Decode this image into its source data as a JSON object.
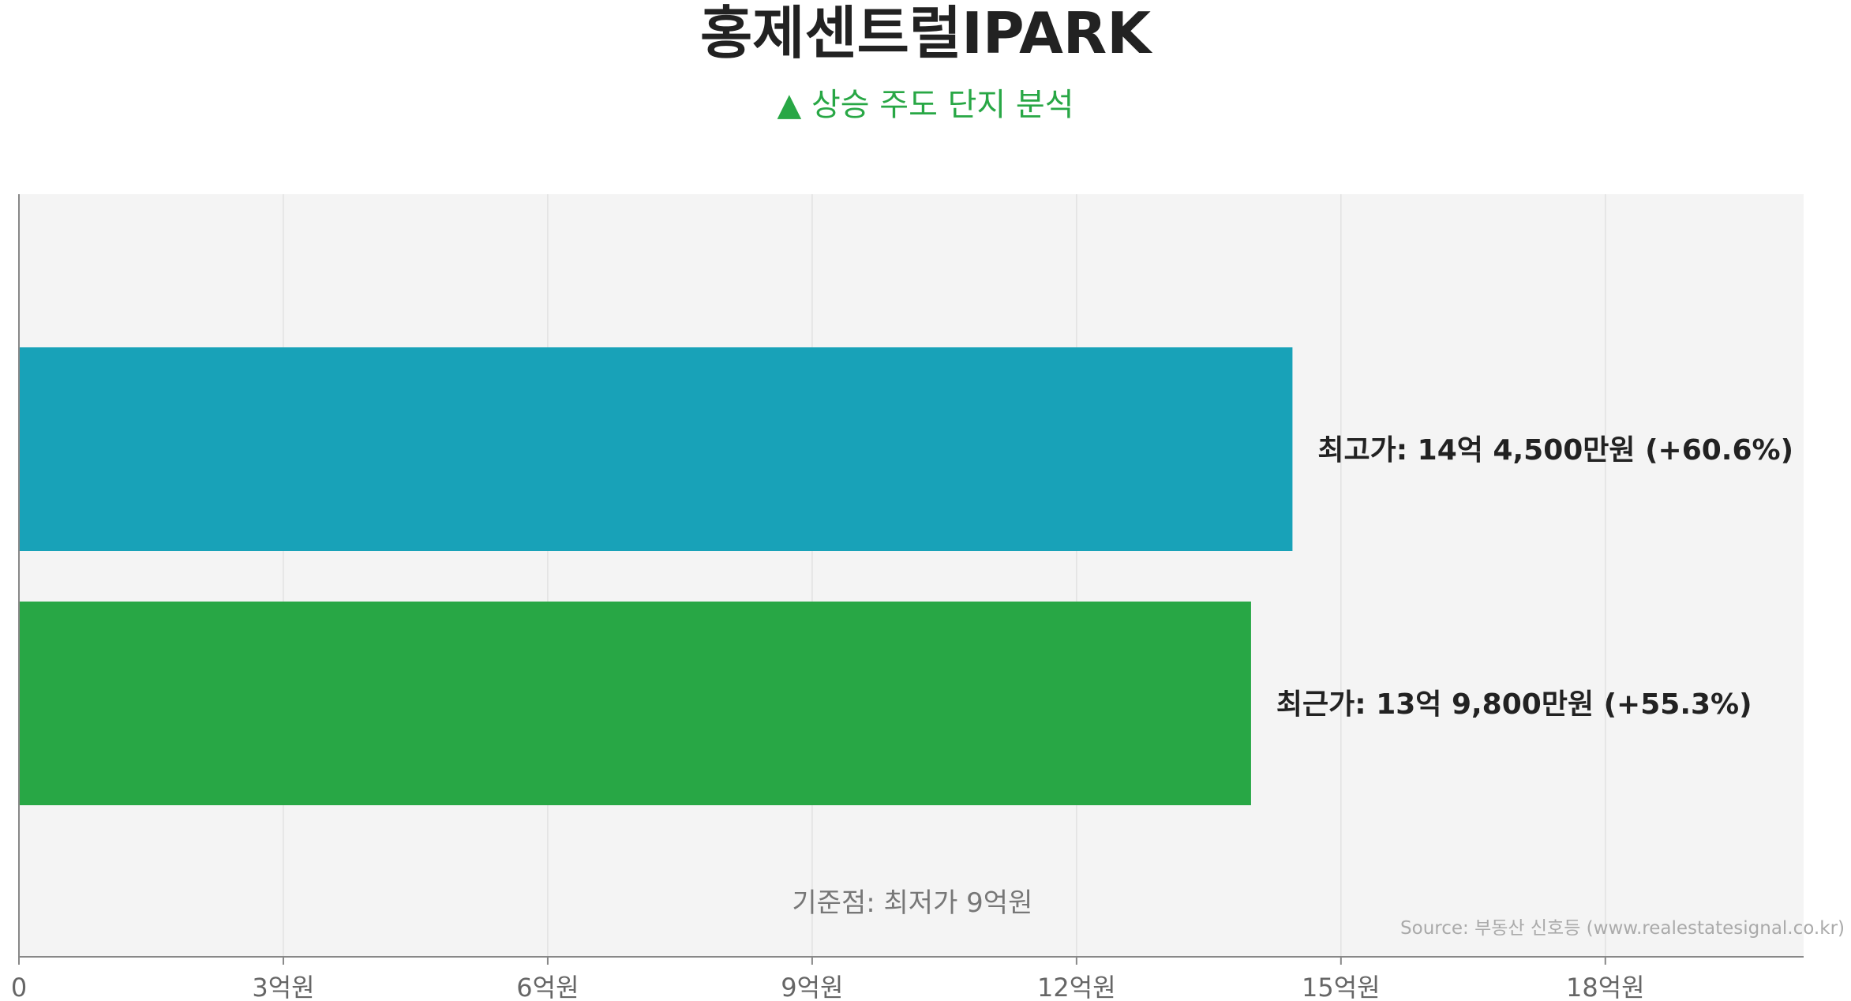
{
  "title": "홍제센트럴IPARK",
  "subtitle": "▲ 상승 주도 단지 분석",
  "source": "Source: 부동산 신호등 (www.realestatesignal.co.kr)",
  "colors": {
    "background": "#f4f4f4",
    "highest_bar": "#18a2b8",
    "recent_bar": "#28a745",
    "subtitle": "#28a745",
    "grid": "#e2e2e2",
    "axis": "#888888",
    "label_text": "#222222",
    "baseline_text": "#777777"
  },
  "chart_data": {
    "type": "bar",
    "orientation": "horizontal",
    "x_ticks": [
      {
        "value": 0,
        "label": "0"
      },
      {
        "value": 3,
        "label": "3억원"
      },
      {
        "value": 6,
        "label": "6억원"
      },
      {
        "value": 9,
        "label": "9억원"
      },
      {
        "value": 12,
        "label": "12억원"
      },
      {
        "value": 15,
        "label": "15억원"
      },
      {
        "value": 18,
        "label": "18억원"
      }
    ],
    "xlim": [
      0,
      20.25
    ],
    "grid": true,
    "bars": [
      {
        "name": "최고가",
        "value": 14.45,
        "label": "최고가: 14억 4,500만원 (+60.6%)",
        "color": "#18a2b8"
      },
      {
        "name": "최근가",
        "value": 13.98,
        "label": "최근가: 13억 9,800만원 (+55.3%)",
        "color": "#28a745"
      }
    ],
    "annotation": "기준점: 최저가 9억원"
  }
}
